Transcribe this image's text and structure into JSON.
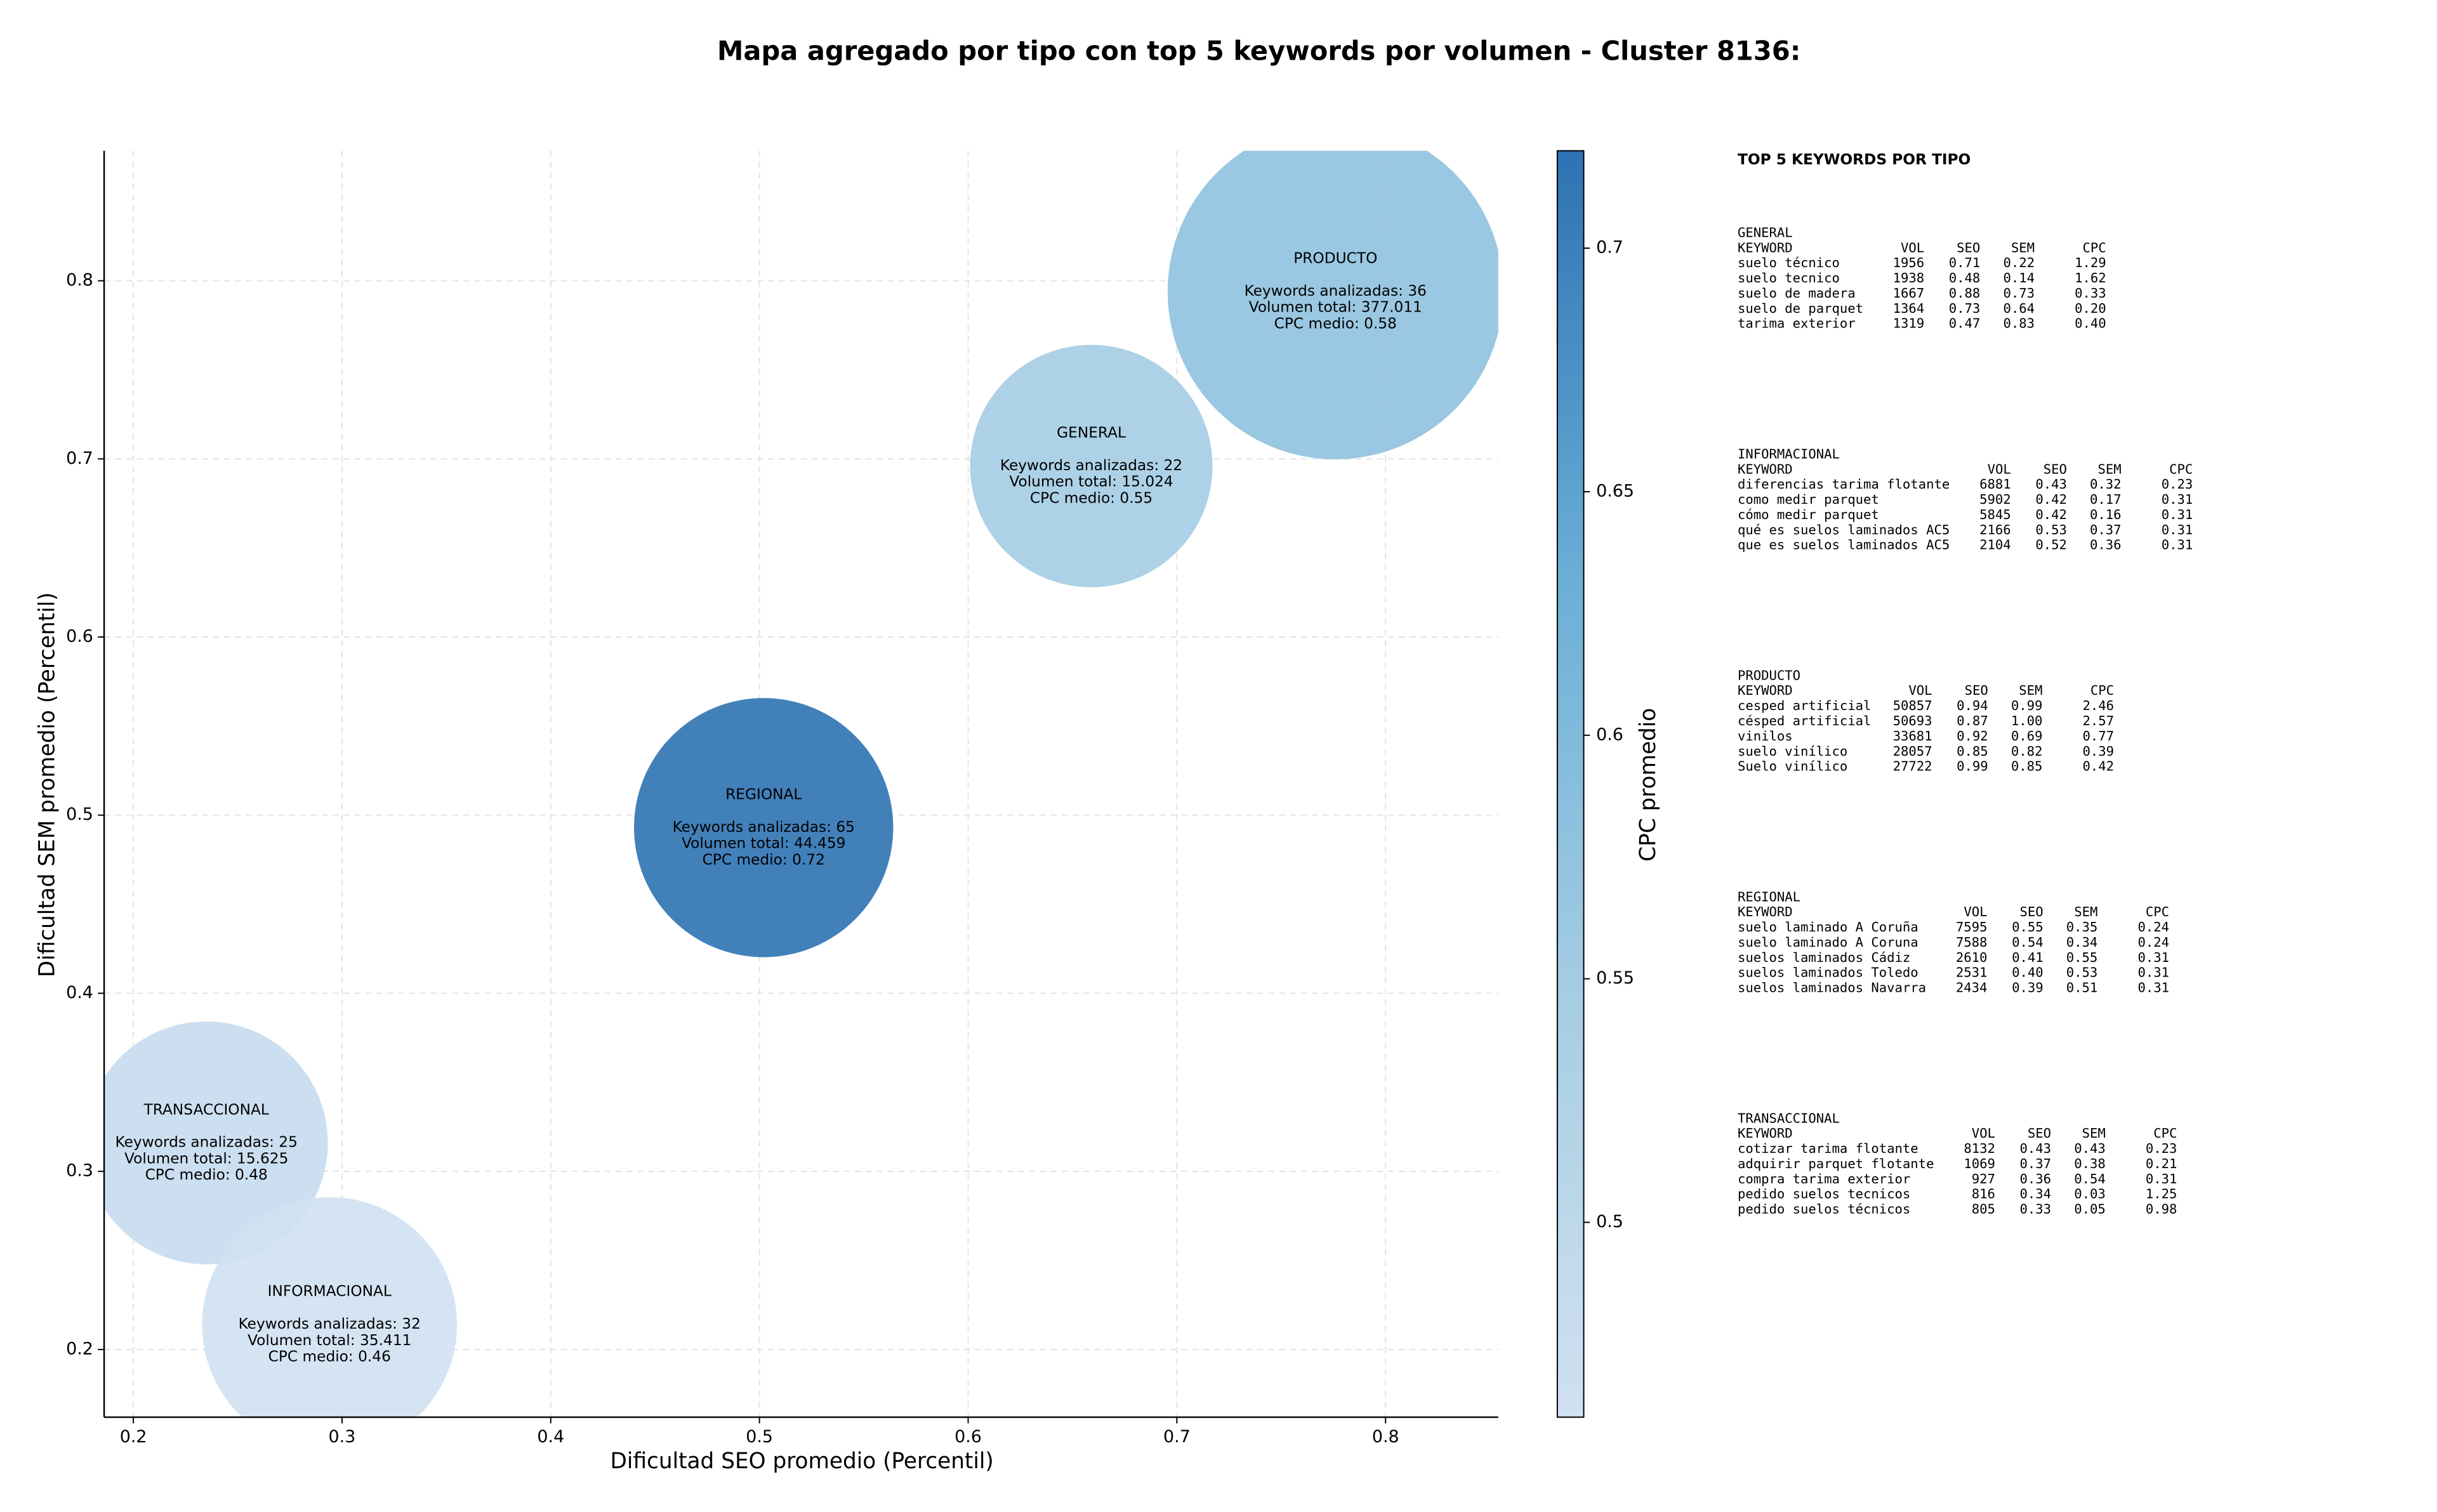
{
  "chart_data": {
    "type": "bubble",
    "title": "Mapa agregado por tipo con top 5 keywords por volumen - Cluster 8136:",
    "x_label": "Dificultad SEO promedio (Percentil)",
    "y_label": "Dificultad SEM promedio (Percentil)",
    "xlim": [
      0.186,
      0.854
    ],
    "ylim": [
      0.162,
      0.873
    ],
    "xticks": [
      0.2,
      0.3,
      0.4,
      0.5,
      0.6,
      0.7,
      0.8
    ],
    "yticks": [
      0.2,
      0.3,
      0.4,
      0.5,
      0.6,
      0.7,
      0.8
    ],
    "grid": true,
    "colorbar": {
      "label": "CPC promedio",
      "clim": [
        0.46,
        0.72
      ],
      "ticks": [
        0.5,
        0.55,
        0.6,
        0.65,
        0.7
      ],
      "colormap": [
        "#d0e1f2",
        "#a6cde3",
        "#6aaed6",
        "#2d72b3"
      ]
    },
    "points": [
      {
        "name": "GENERAL",
        "x": 0.659,
        "y": 0.696,
        "keywords": 22,
        "volume": 15024,
        "cpc": 0.55,
        "lines": [
          "Keywords analizadas: 22",
          "Volumen total: 15.024",
          "CPC medio: 0.55"
        ]
      },
      {
        "name": "PRODUCTO",
        "x": 0.776,
        "y": 0.794,
        "keywords": 36,
        "volume": 377011,
        "cpc": 0.58,
        "lines": [
          "Keywords analizadas: 36",
          "Volumen total: 377.011",
          "CPC medio: 0.58"
        ]
      },
      {
        "name": "REGIONAL",
        "x": 0.502,
        "y": 0.493,
        "keywords": 65,
        "volume": 44459,
        "cpc": 0.72,
        "lines": [
          "Keywords analizadas: 65",
          "Volumen total: 44.459",
          "CPC medio: 0.72"
        ]
      },
      {
        "name": "TRANSACCIONAL",
        "x": 0.235,
        "y": 0.316,
        "keywords": 25,
        "volume": 15625,
        "cpc": 0.48,
        "lines": [
          "Keywords analizadas: 25",
          "Volumen total: 15.625",
          "CPC medio: 0.48"
        ]
      },
      {
        "name": "INFORMACIONAL",
        "x": 0.294,
        "y": 0.214,
        "keywords": 32,
        "volume": 35411,
        "cpc": 0.46,
        "lines": [
          "Keywords analizadas: 32",
          "Volumen total: 35.411",
          "CPC medio: 0.46"
        ]
      }
    ]
  },
  "side_panel": {
    "title": "TOP 5 KEYWORDS POR TIPO",
    "columns": [
      "KEYWORD",
      "VOL",
      "SEO",
      "SEM",
      "CPC"
    ],
    "groups": [
      {
        "name": "GENERAL",
        "rows": [
          [
            "suelo técnico",
            "1956",
            "0.71",
            "0.22",
            "1.29"
          ],
          [
            "suelo tecnico",
            "1938",
            "0.48",
            "0.14",
            "1.62"
          ],
          [
            "suelo de madera",
            "1667",
            "0.88",
            "0.73",
            "0.33"
          ],
          [
            "suelo de parquet",
            "1364",
            "0.73",
            "0.64",
            "0.20"
          ],
          [
            "tarima exterior",
            "1319",
            "0.47",
            "0.83",
            "0.40"
          ]
        ]
      },
      {
        "name": "INFORMACIONAL",
        "rows": [
          [
            "diferencias tarima flotante",
            "6881",
            "0.43",
            "0.32",
            "0.23"
          ],
          [
            "como medir parquet",
            "5902",
            "0.42",
            "0.17",
            "0.31"
          ],
          [
            "cómo medir parquet",
            "5845",
            "0.42",
            "0.16",
            "0.31"
          ],
          [
            "qué es suelos laminados AC5",
            "2166",
            "0.53",
            "0.37",
            "0.31"
          ],
          [
            "que es suelos laminados AC5",
            "2104",
            "0.52",
            "0.36",
            "0.31"
          ]
        ]
      },
      {
        "name": "PRODUCTO",
        "rows": [
          [
            "cesped artificial",
            "50857",
            "0.94",
            "0.99",
            "2.46"
          ],
          [
            "césped artificial",
            "50693",
            "0.87",
            "1.00",
            "2.57"
          ],
          [
            "vinilos",
            "33681",
            "0.92",
            "0.69",
            "0.77"
          ],
          [
            "suelo vinílico",
            "28057",
            "0.85",
            "0.82",
            "0.39"
          ],
          [
            "Suelo vinílico",
            "27722",
            "0.99",
            "0.85",
            "0.42"
          ]
        ]
      },
      {
        "name": "REGIONAL",
        "rows": [
          [
            "suelo laminado A Coruña",
            "7595",
            "0.55",
            "0.35",
            "0.24"
          ],
          [
            "suelo laminado A Coruna",
            "7588",
            "0.54",
            "0.34",
            "0.24"
          ],
          [
            "suelos laminados Cádiz",
            "2610",
            "0.41",
            "0.55",
            "0.31"
          ],
          [
            "suelos laminados Toledo",
            "2531",
            "0.40",
            "0.53",
            "0.31"
          ],
          [
            "suelos laminados Navarra",
            "2434",
            "0.39",
            "0.51",
            "0.31"
          ]
        ]
      },
      {
        "name": "TRANSACCIONAL",
        "rows": [
          [
            "cotizar tarima flotante",
            "8132",
            "0.43",
            "0.43",
            "0.23"
          ],
          [
            "adquirir parquet flotante",
            "1069",
            "0.37",
            "0.38",
            "0.21"
          ],
          [
            "compra tarima exterior",
            "927",
            "0.36",
            "0.54",
            "0.31"
          ],
          [
            "pedido suelos tecnicos",
            "816",
            "0.34",
            "0.03",
            "1.25"
          ],
          [
            "pedido suelos técnicos",
            "805",
            "0.33",
            "0.05",
            "0.98"
          ]
        ]
      }
    ]
  }
}
